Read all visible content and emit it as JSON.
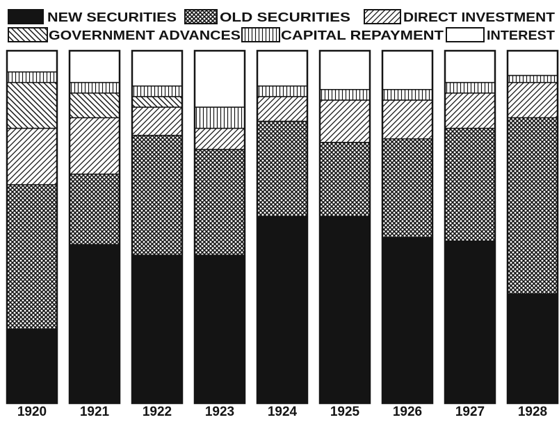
{
  "chart_data": {
    "type": "bar",
    "stacked": true,
    "normalized": true,
    "unit": "percent of total",
    "title": "",
    "xlabel": "",
    "ylabel": "",
    "ylim": [
      0,
      100
    ],
    "grid": false,
    "legend_position": "top",
    "categories": [
      "1920",
      "1921",
      "1922",
      "1923",
      "1924",
      "1925",
      "1926",
      "1927",
      "1928"
    ],
    "series": [
      {
        "name": "NEW SECURITIES",
        "pattern": "solid",
        "values": [
          21,
          45,
          42,
          42,
          53,
          53,
          47,
          46,
          31
        ]
      },
      {
        "name": "OLD SECURITIES",
        "pattern": "crosshatch",
        "values": [
          41,
          20,
          34,
          30,
          27,
          21,
          28,
          32,
          50
        ]
      },
      {
        "name": "DIRECT INVESTMENT",
        "pattern": "diagonal",
        "values": [
          16,
          16,
          8,
          6,
          7,
          12,
          11,
          10,
          10
        ]
      },
      {
        "name": "GOVERNMENT ADVANCES",
        "pattern": "backslash",
        "values": [
          13,
          7,
          3,
          0,
          0,
          0,
          0,
          0,
          0
        ]
      },
      {
        "name": "CAPITAL REPAYMENT",
        "pattern": "vertical",
        "values": [
          3,
          3,
          3,
          6,
          3,
          3,
          3,
          3,
          2
        ]
      },
      {
        "name": "INTEREST",
        "pattern": "blank",
        "values": [
          6,
          9,
          10,
          16,
          10,
          11,
          11,
          9,
          7
        ]
      }
    ]
  },
  "colors": {
    "ink": "#141414",
    "paper": "#ffffff"
  }
}
